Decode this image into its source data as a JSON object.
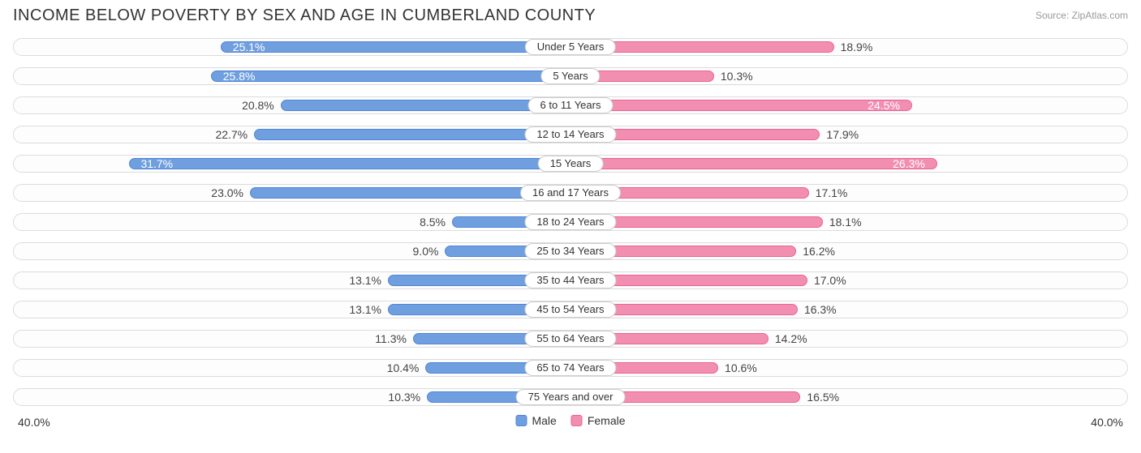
{
  "header": {
    "title": "INCOME BELOW POVERTY BY SEX AND AGE IN CUMBERLAND COUNTY",
    "source": "Source: ZipAtlas.com"
  },
  "chart": {
    "type": "diverging-bar",
    "axis_max": 40.0,
    "axis_label_left": "40.0%",
    "axis_label_right": "40.0%",
    "background_color": "#ffffff",
    "track_border_color": "#dcdcdc",
    "track_bg_color": "#fdfdfd",
    "label_color": "#444444",
    "inside_label_threshold": 24.0,
    "male": {
      "fill": "#6f9fde",
      "border": "#4f86d8",
      "legend_label": "Male"
    },
    "female": {
      "fill": "#f28fb0",
      "border": "#ea6299",
      "legend_label": "Female"
    },
    "rows": [
      {
        "category": "Under 5 Years",
        "male": 25.1,
        "female": 18.9
      },
      {
        "category": "5 Years",
        "male": 25.8,
        "female": 10.3
      },
      {
        "category": "6 to 11 Years",
        "male": 20.8,
        "female": 24.5
      },
      {
        "category": "12 to 14 Years",
        "male": 22.7,
        "female": 17.9
      },
      {
        "category": "15 Years",
        "male": 31.7,
        "female": 26.3
      },
      {
        "category": "16 and 17 Years",
        "male": 23.0,
        "female": 17.1
      },
      {
        "category": "18 to 24 Years",
        "male": 8.5,
        "female": 18.1
      },
      {
        "category": "25 to 34 Years",
        "male": 9.0,
        "female": 16.2
      },
      {
        "category": "35 to 44 Years",
        "male": 13.1,
        "female": 17.0
      },
      {
        "category": "45 to 54 Years",
        "male": 13.1,
        "female": 16.3
      },
      {
        "category": "55 to 64 Years",
        "male": 11.3,
        "female": 14.2
      },
      {
        "category": "65 to 74 Years",
        "male": 10.4,
        "female": 10.6
      },
      {
        "category": "75 Years and over",
        "male": 10.3,
        "female": 16.5
      }
    ]
  }
}
